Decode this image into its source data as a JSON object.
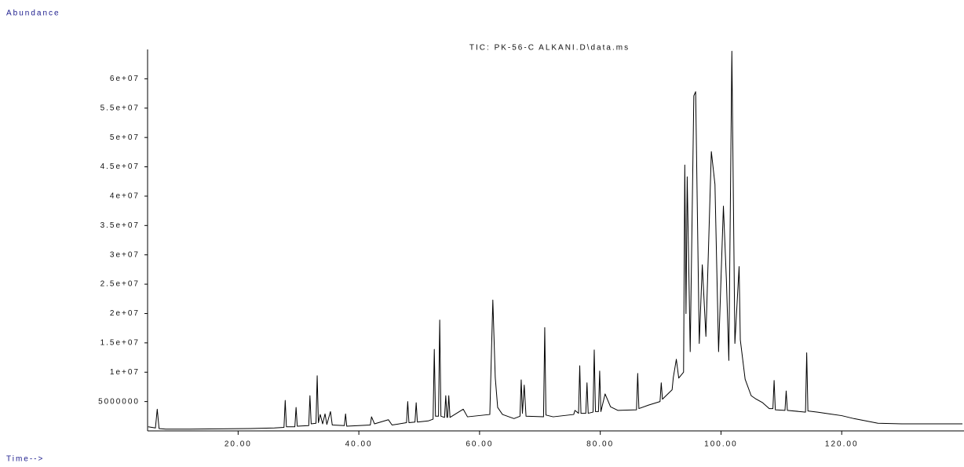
{
  "chart_data": {
    "type": "line",
    "title": "TIC: PK-56-C ALKANI.D\\data.ms",
    "y_label": "Abundance",
    "x_label": "Time-->",
    "color": "#000000",
    "xlim": [
      5,
      140
    ],
    "ylim": [
      0,
      65000000
    ],
    "xticks": [
      {
        "value": 20,
        "label": "20.00"
      },
      {
        "value": 40,
        "label": "40.00"
      },
      {
        "value": 60,
        "label": "60.00"
      },
      {
        "value": 80,
        "label": "80.00"
      },
      {
        "value": 100,
        "label": "100.00"
      },
      {
        "value": 120,
        "label": "120.00"
      }
    ],
    "yticks": [
      5000000,
      {
        "value": 10000000,
        "label": "1e+07"
      },
      {
        "value": 15000000,
        "label": "1.5e+07"
      },
      {
        "value": 20000000,
        "label": "2e+07"
      },
      {
        "value": 25000000,
        "label": "2.5e+07"
      },
      {
        "value": 30000000,
        "label": "3e+07"
      },
      {
        "value": 35000000,
        "label": "3.5e+07"
      },
      {
        "value": 40000000,
        "label": "4e+07"
      },
      {
        "value": 45000000,
        "label": "4.5e+07"
      },
      {
        "value": 50000000,
        "label": "5e+07"
      },
      {
        "value": 55000000,
        "label": "5.5e+07"
      },
      {
        "value": 60000000,
        "label": "6e+07"
      }
    ],
    "x": [
      5.1,
      6.3,
      6.6,
      6.9,
      8,
      12,
      17,
      22,
      26,
      27.6,
      27.8,
      28,
      29.4,
      29.6,
      29.8,
      31.7,
      31.9,
      32.1,
      32.9,
      33.1,
      33.3,
      33.6,
      34,
      34.4,
      34.7,
      35.3,
      35.6,
      37.6,
      37.8,
      38,
      41.9,
      42.1,
      42.6,
      44.9,
      45.5,
      47.9,
      48.1,
      48.3,
      49.3,
      49.5,
      49.7,
      51.5,
      52.3,
      52.5,
      52.7,
      53.2,
      53.4,
      53.6,
      54.2,
      54.4,
      54.6,
      54.7,
      54.9,
      55.1,
      57.3,
      58,
      61.7,
      62.2,
      62.6,
      63,
      63.8,
      65.7,
      66.7,
      66.9,
      67.1,
      67.4,
      67.7,
      70.6,
      70.8,
      71,
      72.2,
      75.6,
      75.8,
      76.4,
      76.6,
      76.8,
      77.6,
      77.8,
      78,
      78.8,
      79,
      79.2,
      79.7,
      79.9,
      80.1,
      80.8,
      81.7,
      82.9,
      86,
      86.2,
      86.4,
      88,
      89.9,
      90.1,
      90.3,
      91.9,
      92.1,
      92.6,
      93,
      93.8,
      94,
      94.2,
      94.4,
      94.9,
      95.5,
      95.8,
      96.4,
      96.9,
      97.5,
      98.4,
      99,
      99.6,
      100.4,
      100.9,
      101.3,
      101.8,
      102.3,
      103,
      103.2,
      104,
      105,
      105.7,
      106.9,
      108,
      108.6,
      108.8,
      109,
      110.6,
      110.8,
      111,
      114,
      114.2,
      114.4,
      116,
      118,
      120,
      122,
      124,
      126,
      130,
      140
    ],
    "values": [
      700000,
      500000,
      3700000,
      400000,
      300000,
      300000,
      350000,
      400000,
      500000,
      600000,
      5200000,
      700000,
      700000,
      4000000,
      800000,
      900000,
      6000000,
      1200000,
      1300000,
      9400000,
      1400000,
      2800000,
      1200000,
      2900000,
      1100000,
      3300000,
      1000000,
      900000,
      2900000,
      800000,
      1000000,
      2400000,
      1200000,
      1900000,
      1000000,
      1400000,
      5000000,
      1400000,
      1500000,
      4800000,
      1500000,
      1700000,
      2000000,
      13900000,
      2500000,
      2500000,
      18900000,
      2500000,
      2300000,
      6000000,
      2300000,
      2300000,
      6000000,
      2300000,
      3700000,
      2400000,
      2800000,
      22300000,
      9100000,
      4000000,
      2800000,
      2100000,
      2500000,
      8700000,
      3000000,
      7800000,
      2500000,
      2400000,
      17600000,
      2700000,
      2400000,
      2800000,
      3500000,
      3000000,
      11100000,
      3000000,
      3000000,
      8200000,
      3000000,
      3200000,
      13800000,
      3300000,
      3300000,
      10200000,
      3300000,
      6300000,
      4100000,
      3500000,
      3600000,
      9800000,
      3800000,
      4400000,
      5000000,
      8200000,
      5400000,
      7000000,
      9100000,
      12200000,
      9000000,
      10000000,
      45300000,
      20000000,
      43300000,
      13500000,
      57100000,
      57800000,
      14900000,
      28300000,
      16100000,
      47600000,
      42000000,
      13500000,
      38300000,
      25600000,
      12000000,
      64700000,
      14900000,
      28000000,
      15500000,
      8800000,
      6000000,
      5500000,
      4800000,
      3800000,
      3800000,
      8600000,
      3600000,
      3500000,
      6800000,
      3500000,
      3200000,
      13300000,
      3400000,
      3200000,
      2900000,
      2600000,
      2100000,
      1700000,
      1300000,
      1200000,
      1200000
    ]
  }
}
